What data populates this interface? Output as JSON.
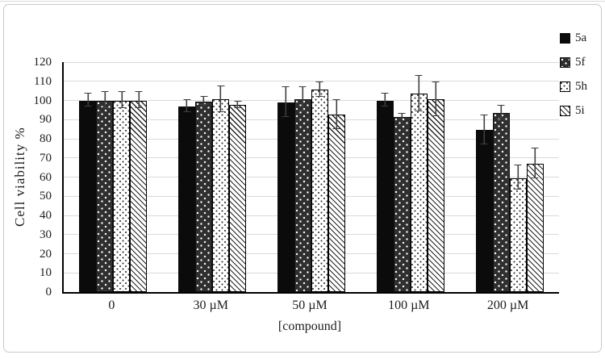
{
  "figure": {
    "background": "#ffffff",
    "border_color": "#c9c9c9",
    "gridline_color": "#d9d9d9",
    "axis_color": "#000000",
    "error_bar_color": "#3f3f3f",
    "text_color": "#1c1c1c"
  },
  "chart_data": {
    "type": "bar",
    "title": "",
    "xlabel": "[compound]",
    "ylabel": "Cell viability %",
    "ylim": [
      0,
      120
    ],
    "ytick_step": 10,
    "grid": true,
    "legend_position": "right",
    "categories": [
      "0",
      "30 µM",
      "50 µM",
      "100 µM",
      "200 µM"
    ],
    "series": [
      {
        "name": "5a",
        "pattern": "solid-black",
        "values": [
          100,
          97,
          99,
          100,
          84.5
        ],
        "errors": [
          3,
          3,
          7.5,
          3,
          7.5
        ]
      },
      {
        "name": "5f",
        "pattern": "white-dots-on-dark",
        "values": [
          100,
          99.5,
          100.5,
          91.5,
          93.5
        ],
        "errors": [
          4,
          2,
          6,
          1,
          3.5
        ]
      },
      {
        "name": "5h",
        "pattern": "black-dots-on-white",
        "values": [
          100,
          100.5,
          105.5,
          103.5,
          59.5
        ],
        "errors": [
          4,
          6.5,
          3.5,
          9,
          6
        ]
      },
      {
        "name": "5i",
        "pattern": "diagonal-hatch",
        "values": [
          100,
          97.5,
          92.5,
          100.5,
          67
        ],
        "errors": [
          4,
          1.5,
          7.5,
          8.5,
          7.5
        ]
      }
    ]
  }
}
